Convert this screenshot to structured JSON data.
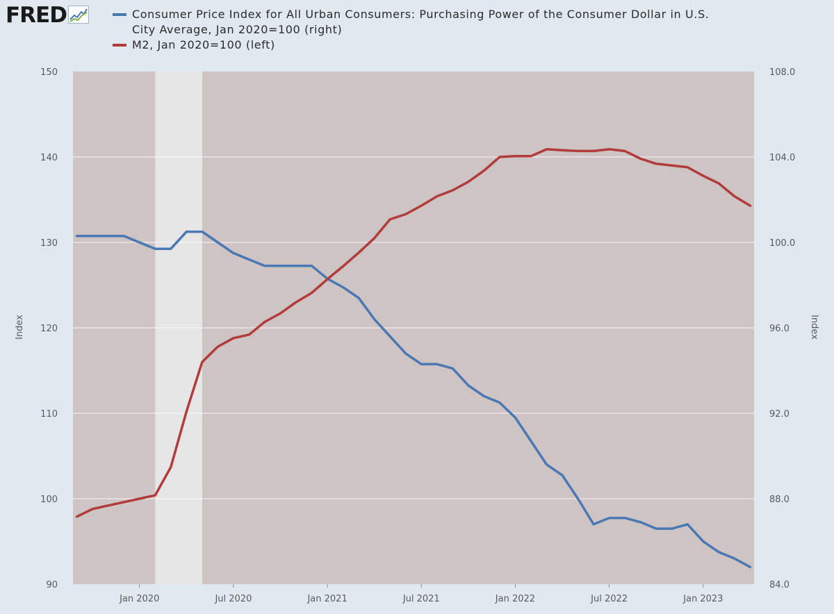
{
  "logo": {
    "text": "FRED"
  },
  "colors": {
    "page_background": "#e1e9f0",
    "plot_background": "#cfc4c4",
    "recession_band": "#e6e6e6",
    "cpi_series": "#4a78b3",
    "m2_series": "#b23b3b",
    "gridline": "#ffffff"
  },
  "chart_data": {
    "type": "line",
    "title": "",
    "xlabel": "",
    "ylabel_left": "Index",
    "ylabel_right": "Index",
    "x_start": "2019-09",
    "x_end": "2023-04",
    "x_ticks": [
      "Jan 2020",
      "Jul 2020",
      "Jan 2021",
      "Jul 2021",
      "Jan 2022",
      "Jul 2022",
      "Jan 2023"
    ],
    "y_left": {
      "lim": [
        90,
        150
      ],
      "ticks": [
        "90",
        "100",
        "110",
        "120",
        "130",
        "140",
        "150"
      ]
    },
    "y_right": {
      "lim": [
        84.0,
        108.0
      ],
      "ticks": [
        "84.0",
        "88.0",
        "92.0",
        "96.0",
        "100.0",
        "104.0",
        "108.0"
      ]
    },
    "grid": true,
    "legend_position": "top",
    "recession": {
      "start": "2020-02",
      "end": "2020-04"
    },
    "series": [
      {
        "name": "Consumer Price Index for All Urban Consumers: Purchasing Power of the Consumer Dollar in U.S. City Average, Jan 2020=100 (right)",
        "axis": "right",
        "color": "#4a78b3",
        "points": [
          [
            "2019-09",
            100.3
          ],
          [
            "2019-10",
            100.3
          ],
          [
            "2019-11",
            100.3
          ],
          [
            "2019-12",
            100.3
          ],
          [
            "2020-01",
            100.0
          ],
          [
            "2020-02",
            99.7
          ],
          [
            "2020-03",
            99.7
          ],
          [
            "2020-04",
            100.5
          ],
          [
            "2020-05",
            100.5
          ],
          [
            "2020-06",
            100.0
          ],
          [
            "2020-07",
            99.5
          ],
          [
            "2020-08",
            99.2
          ],
          [
            "2020-09",
            98.9
          ],
          [
            "2020-10",
            98.9
          ],
          [
            "2020-11",
            98.9
          ],
          [
            "2020-12",
            98.9
          ],
          [
            "2021-01",
            98.3
          ],
          [
            "2021-02",
            97.9
          ],
          [
            "2021-03",
            97.4
          ],
          [
            "2021-04",
            96.4
          ],
          [
            "2021-05",
            95.6
          ],
          [
            "2021-06",
            94.8
          ],
          [
            "2021-07",
            94.3
          ],
          [
            "2021-08",
            94.3
          ],
          [
            "2021-09",
            94.1
          ],
          [
            "2021-10",
            93.3
          ],
          [
            "2021-11",
            92.8
          ],
          [
            "2021-12",
            92.5
          ],
          [
            "2022-01",
            91.8
          ],
          [
            "2022-02",
            90.7
          ],
          [
            "2022-03",
            89.6
          ],
          [
            "2022-04",
            89.1
          ],
          [
            "2022-05",
            88.0
          ],
          [
            "2022-06",
            86.8
          ],
          [
            "2022-07",
            87.1
          ],
          [
            "2022-08",
            87.1
          ],
          [
            "2022-09",
            86.9
          ],
          [
            "2022-10",
            86.6
          ],
          [
            "2022-11",
            86.6
          ],
          [
            "2022-12",
            86.8
          ],
          [
            "2023-01",
            86.0
          ],
          [
            "2023-02",
            85.5
          ],
          [
            "2023-03",
            85.2
          ],
          [
            "2023-04",
            84.8
          ]
        ]
      },
      {
        "name": "M2, Jan 2020=100 (left)",
        "axis": "left",
        "color": "#b23b3b",
        "points": [
          [
            "2019-09",
            97.9
          ],
          [
            "2019-10",
            98.8
          ],
          [
            "2019-11",
            99.2
          ],
          [
            "2019-12",
            99.6
          ],
          [
            "2020-01",
            100.0
          ],
          [
            "2020-02",
            100.4
          ],
          [
            "2020-03",
            103.7
          ],
          [
            "2020-04",
            110.2
          ],
          [
            "2020-05",
            116.0
          ],
          [
            "2020-06",
            117.8
          ],
          [
            "2020-07",
            118.8
          ],
          [
            "2020-08",
            119.2
          ],
          [
            "2020-09",
            120.7
          ],
          [
            "2020-10",
            121.7
          ],
          [
            "2020-11",
            123.0
          ],
          [
            "2020-12",
            124.1
          ],
          [
            "2021-01",
            125.7
          ],
          [
            "2021-02",
            127.2
          ],
          [
            "2021-03",
            128.8
          ],
          [
            "2021-04",
            130.5
          ],
          [
            "2021-05",
            132.7
          ],
          [
            "2021-06",
            133.3
          ],
          [
            "2021-07",
            134.3
          ],
          [
            "2021-08",
            135.4
          ],
          [
            "2021-09",
            136.1
          ],
          [
            "2021-10",
            137.1
          ],
          [
            "2021-11",
            138.4
          ],
          [
            "2021-12",
            140.0
          ],
          [
            "2022-01",
            140.1
          ],
          [
            "2022-02",
            140.1
          ],
          [
            "2022-03",
            140.9
          ],
          [
            "2022-04",
            140.8
          ],
          [
            "2022-05",
            140.7
          ],
          [
            "2022-06",
            140.7
          ],
          [
            "2022-07",
            140.9
          ],
          [
            "2022-08",
            140.7
          ],
          [
            "2022-09",
            139.8
          ],
          [
            "2022-10",
            139.2
          ],
          [
            "2022-11",
            139.0
          ],
          [
            "2022-12",
            138.8
          ],
          [
            "2023-01",
            137.8
          ],
          [
            "2023-02",
            136.9
          ],
          [
            "2023-03",
            135.4
          ],
          [
            "2023-04",
            134.3
          ]
        ]
      }
    ]
  }
}
